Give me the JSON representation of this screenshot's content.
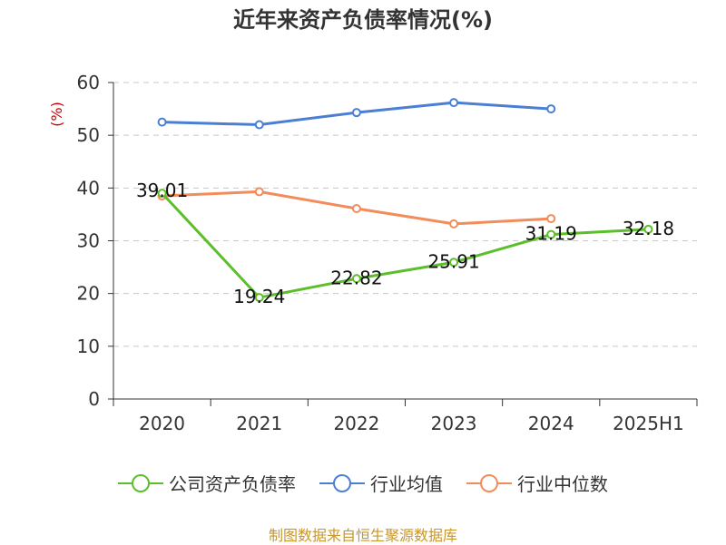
{
  "chart_data": {
    "type": "line",
    "title": "近年来资产负债率情况(%)",
    "ylabel": "(%)",
    "xlabel": "",
    "categories": [
      "2020",
      "2021",
      "2022",
      "2023",
      "2024",
      "2025H1"
    ],
    "ylim": [
      0,
      60
    ],
    "yticks": [
      0,
      10,
      20,
      30,
      40,
      50,
      60
    ],
    "grid": true,
    "legend_position": "bottom",
    "series": [
      {
        "name": "公司资产负债率",
        "color": "#5cbf2a",
        "values": [
          39.01,
          19.24,
          22.82,
          25.91,
          31.19,
          32.18
        ],
        "data_labels": [
          "39.01",
          "19.24",
          "22.82",
          "25.91",
          "31.19",
          "32.18"
        ]
      },
      {
        "name": "行业均值",
        "color": "#4a7fd4",
        "values": [
          52.5,
          52.0,
          54.3,
          56.2,
          55.0,
          null
        ]
      },
      {
        "name": "行业中位数",
        "color": "#f28c5a",
        "values": [
          38.5,
          39.3,
          36.1,
          33.2,
          34.2,
          null
        ]
      }
    ]
  },
  "source": "制图数据来自恒生聚源数据库",
  "ylabel_color": "#cc0000"
}
